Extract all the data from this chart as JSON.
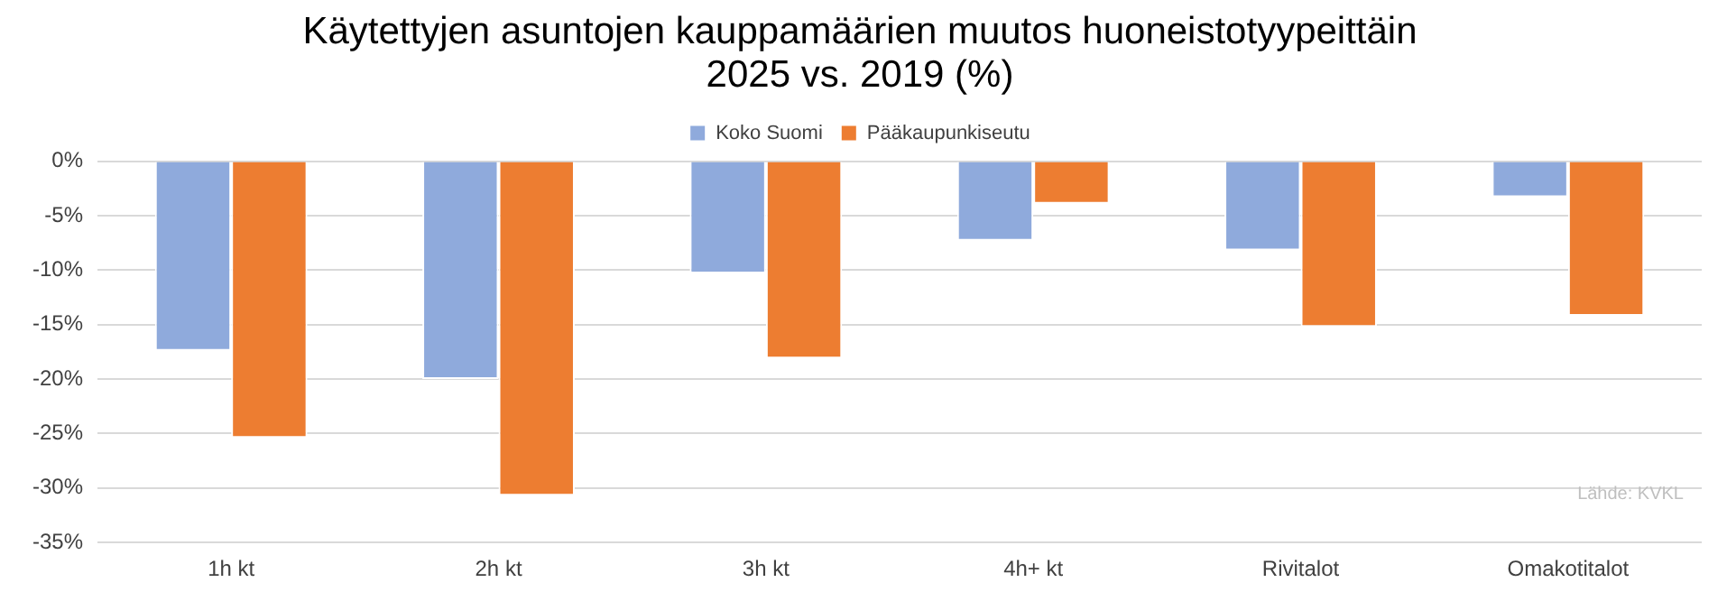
{
  "chart_data": {
    "type": "bar",
    "title": "Käytettyjen asuntojen kauppamäärien muutos huoneistotyypeittäin\n2025 vs. 2019 (%)",
    "categories": [
      "1h kt",
      "2h kt",
      "3h kt",
      "4h+ kt",
      "Rivitalot",
      "Omakotitalot"
    ],
    "series": [
      {
        "name": "Koko Suomi",
        "color": "#8faadc",
        "values": [
          -17.4,
          -20.0,
          -10.3,
          -7.3,
          -8.2,
          -3.3
        ]
      },
      {
        "name": "Pääkaupunkiseutu",
        "color": "#ed7d31",
        "values": [
          -25.4,
          -30.7,
          -18.1,
          -3.9,
          -15.2,
          -14.2
        ]
      }
    ],
    "ylim": [
      -35,
      0
    ],
    "yticks": [
      {
        "value": 0,
        "label": "0%"
      },
      {
        "value": -5,
        "label": "-5%"
      },
      {
        "value": -10,
        "label": "-10%"
      },
      {
        "value": -15,
        "label": "-15%"
      },
      {
        "value": -20,
        "label": "-20%"
      },
      {
        "value": -25,
        "label": "-25%"
      },
      {
        "value": -30,
        "label": "-30%"
      },
      {
        "value": -35,
        "label": "-35%"
      }
    ],
    "grid": "y",
    "legend": "top",
    "annotations": [
      "Lähde: KVKL"
    ]
  }
}
